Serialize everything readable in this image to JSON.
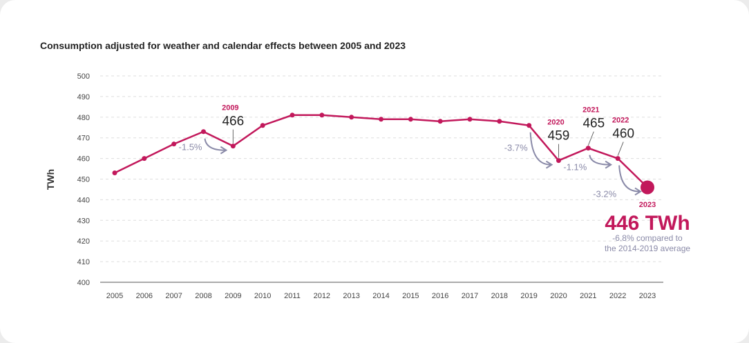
{
  "chart_data": {
    "type": "line",
    "title": "Consumption adjusted for weather and calendar effects between 2005 and 2023",
    "xlabel": "",
    "ylabel": "TWh",
    "ylim": [
      400,
      500
    ],
    "yticks": [
      400,
      410,
      420,
      430,
      440,
      450,
      460,
      470,
      480,
      490,
      500
    ],
    "grid": true,
    "categories": [
      "2005",
      "2006",
      "2007",
      "2008",
      "2009",
      "2010",
      "2011",
      "2012",
      "2013",
      "2014",
      "2015",
      "2016",
      "2017",
      "2018",
      "2019",
      "2020",
      "2021",
      "2022",
      "2023"
    ],
    "values": [
      453,
      460,
      467,
      473,
      466,
      476,
      481,
      481,
      480,
      479,
      479,
      478,
      479,
      478,
      476,
      459,
      465,
      460,
      446
    ],
    "line_color": "#c2185b",
    "annotation_color": "#8a8aa8",
    "callouts": [
      {
        "year": "2009",
        "label": "466"
      },
      {
        "year": "2020",
        "label": "459"
      },
      {
        "year": "2021",
        "label": "465"
      },
      {
        "year": "2022",
        "label": "460"
      }
    ],
    "changes": [
      {
        "from": "2008",
        "to": "2009",
        "label": "-1.5%"
      },
      {
        "from": "2019",
        "to": "2020",
        "label": "-3.7%"
      },
      {
        "from": "2021",
        "to": "2022",
        "label": "-1.1%"
      },
      {
        "from": "2022",
        "to": "2023",
        "label": "-3.2%"
      }
    ],
    "highlight": {
      "year": "2023",
      "value_label": "446 TWh",
      "note_line1": "-6.8% compared to",
      "note_line2": "the 2014-2019 average"
    }
  }
}
